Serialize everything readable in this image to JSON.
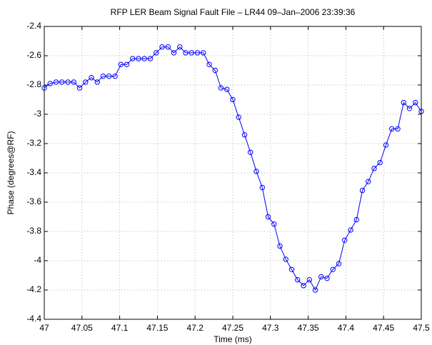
{
  "chart_data": {
    "type": "line",
    "title": "RFP LER Beam Signal Fault File – LR44 09–Jan–2006 23:39:36",
    "xlabel": "Time (ms)",
    "ylabel": "Phase (degrees@RF)",
    "x": [
      47,
      47.0078,
      47.0156,
      47.0234,
      47.0313,
      47.0391,
      47.0469,
      47.0547,
      47.0625,
      47.0703,
      47.0781,
      47.0859,
      47.0938,
      47.1016,
      47.1094,
      47.1172,
      47.125,
      47.1328,
      47.1406,
      47.1484,
      47.1563,
      47.1641,
      47.1719,
      47.1797,
      47.1875,
      47.1953,
      47.2031,
      47.2109,
      47.2188,
      47.2266,
      47.2344,
      47.2422,
      47.25,
      47.2578,
      47.2656,
      47.2734,
      47.2813,
      47.2891,
      47.2969,
      47.3047,
      47.3125,
      47.3203,
      47.3281,
      47.3359,
      47.3438,
      47.3516,
      47.3594,
      47.3672,
      47.375,
      47.3828,
      47.3906,
      47.3984,
      47.4063,
      47.4141,
      47.4219,
      47.4297,
      47.4375,
      47.4453,
      47.4531,
      47.4609,
      47.4688,
      47.4766,
      47.4844,
      47.4922,
      47.5
    ],
    "series": [
      {
        "color": "#0000ff",
        "marker": "circle",
        "values": [
          -2.82,
          -2.79,
          -2.78,
          -2.78,
          -2.78,
          -2.78,
          -2.82,
          -2.78,
          -2.75,
          -2.78,
          -2.74,
          -2.74,
          -2.74,
          -2.66,
          -2.66,
          -2.62,
          -2.62,
          -2.62,
          -2.62,
          -2.58,
          -2.54,
          -2.54,
          -2.58,
          -2.54,
          -2.58,
          -2.58,
          -2.58,
          -2.58,
          -2.66,
          -2.7,
          -2.82,
          -2.83,
          -2.9,
          -3.02,
          -3.14,
          -3.26,
          -3.39,
          -3.5,
          -3.7,
          -3.75,
          -3.9,
          -3.99,
          -4.06,
          -4.13,
          -4.17,
          -4.13,
          -4.2,
          -4.11,
          -4.12,
          -4.06,
          -4.02,
          -3.86,
          -3.79,
          -3.72,
          -3.52,
          -3.46,
          -3.37,
          -3.33,
          -3.21,
          -3.1,
          -3.1,
          -2.92,
          -2.96,
          -2.92,
          -2.98
        ]
      }
    ],
    "xlim": [
      47,
      47.5
    ],
    "xticks": [
      47,
      47.05,
      47.1,
      47.15,
      47.2,
      47.25,
      47.3,
      47.35,
      47.4,
      47.45,
      47.5
    ],
    "ylim": [
      -4.4,
      -2.4
    ],
    "yticks": [
      -4.4,
      -4.2,
      -4,
      -3.8,
      -3.6,
      -3.4,
      -3.2,
      -3,
      -2.8,
      -2.6,
      -2.4
    ],
    "grid": true
  }
}
